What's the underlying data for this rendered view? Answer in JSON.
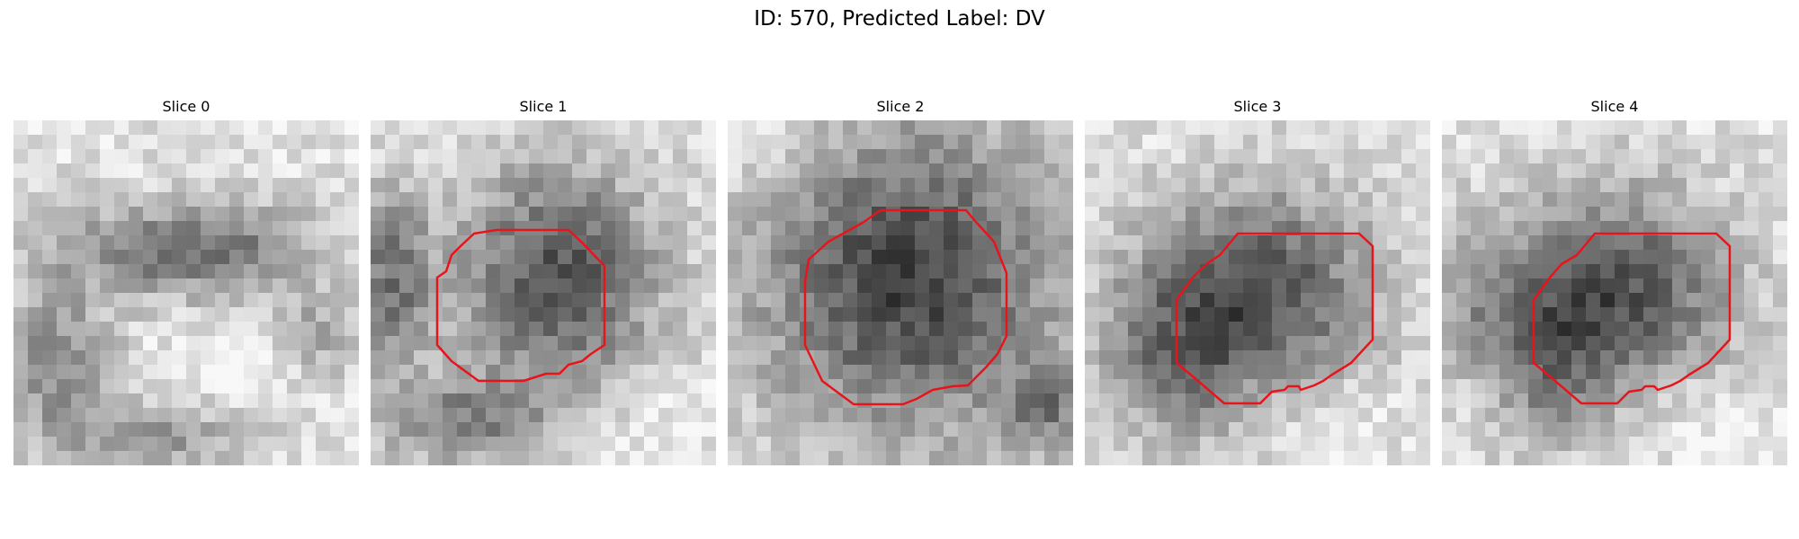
{
  "figure": {
    "title": "ID: 570, Predicted Label: DV"
  },
  "panels": [
    {
      "title": "Slice 0",
      "has_contour": false
    },
    {
      "title": "Slice 1",
      "has_contour": true
    },
    {
      "title": "Slice 2",
      "has_contour": true
    },
    {
      "title": "Slice 3",
      "has_contour": true
    },
    {
      "title": "Slice 4",
      "has_contour": true
    }
  ],
  "colors": {
    "contour": "#e8141c",
    "background": "#ffffff"
  }
}
